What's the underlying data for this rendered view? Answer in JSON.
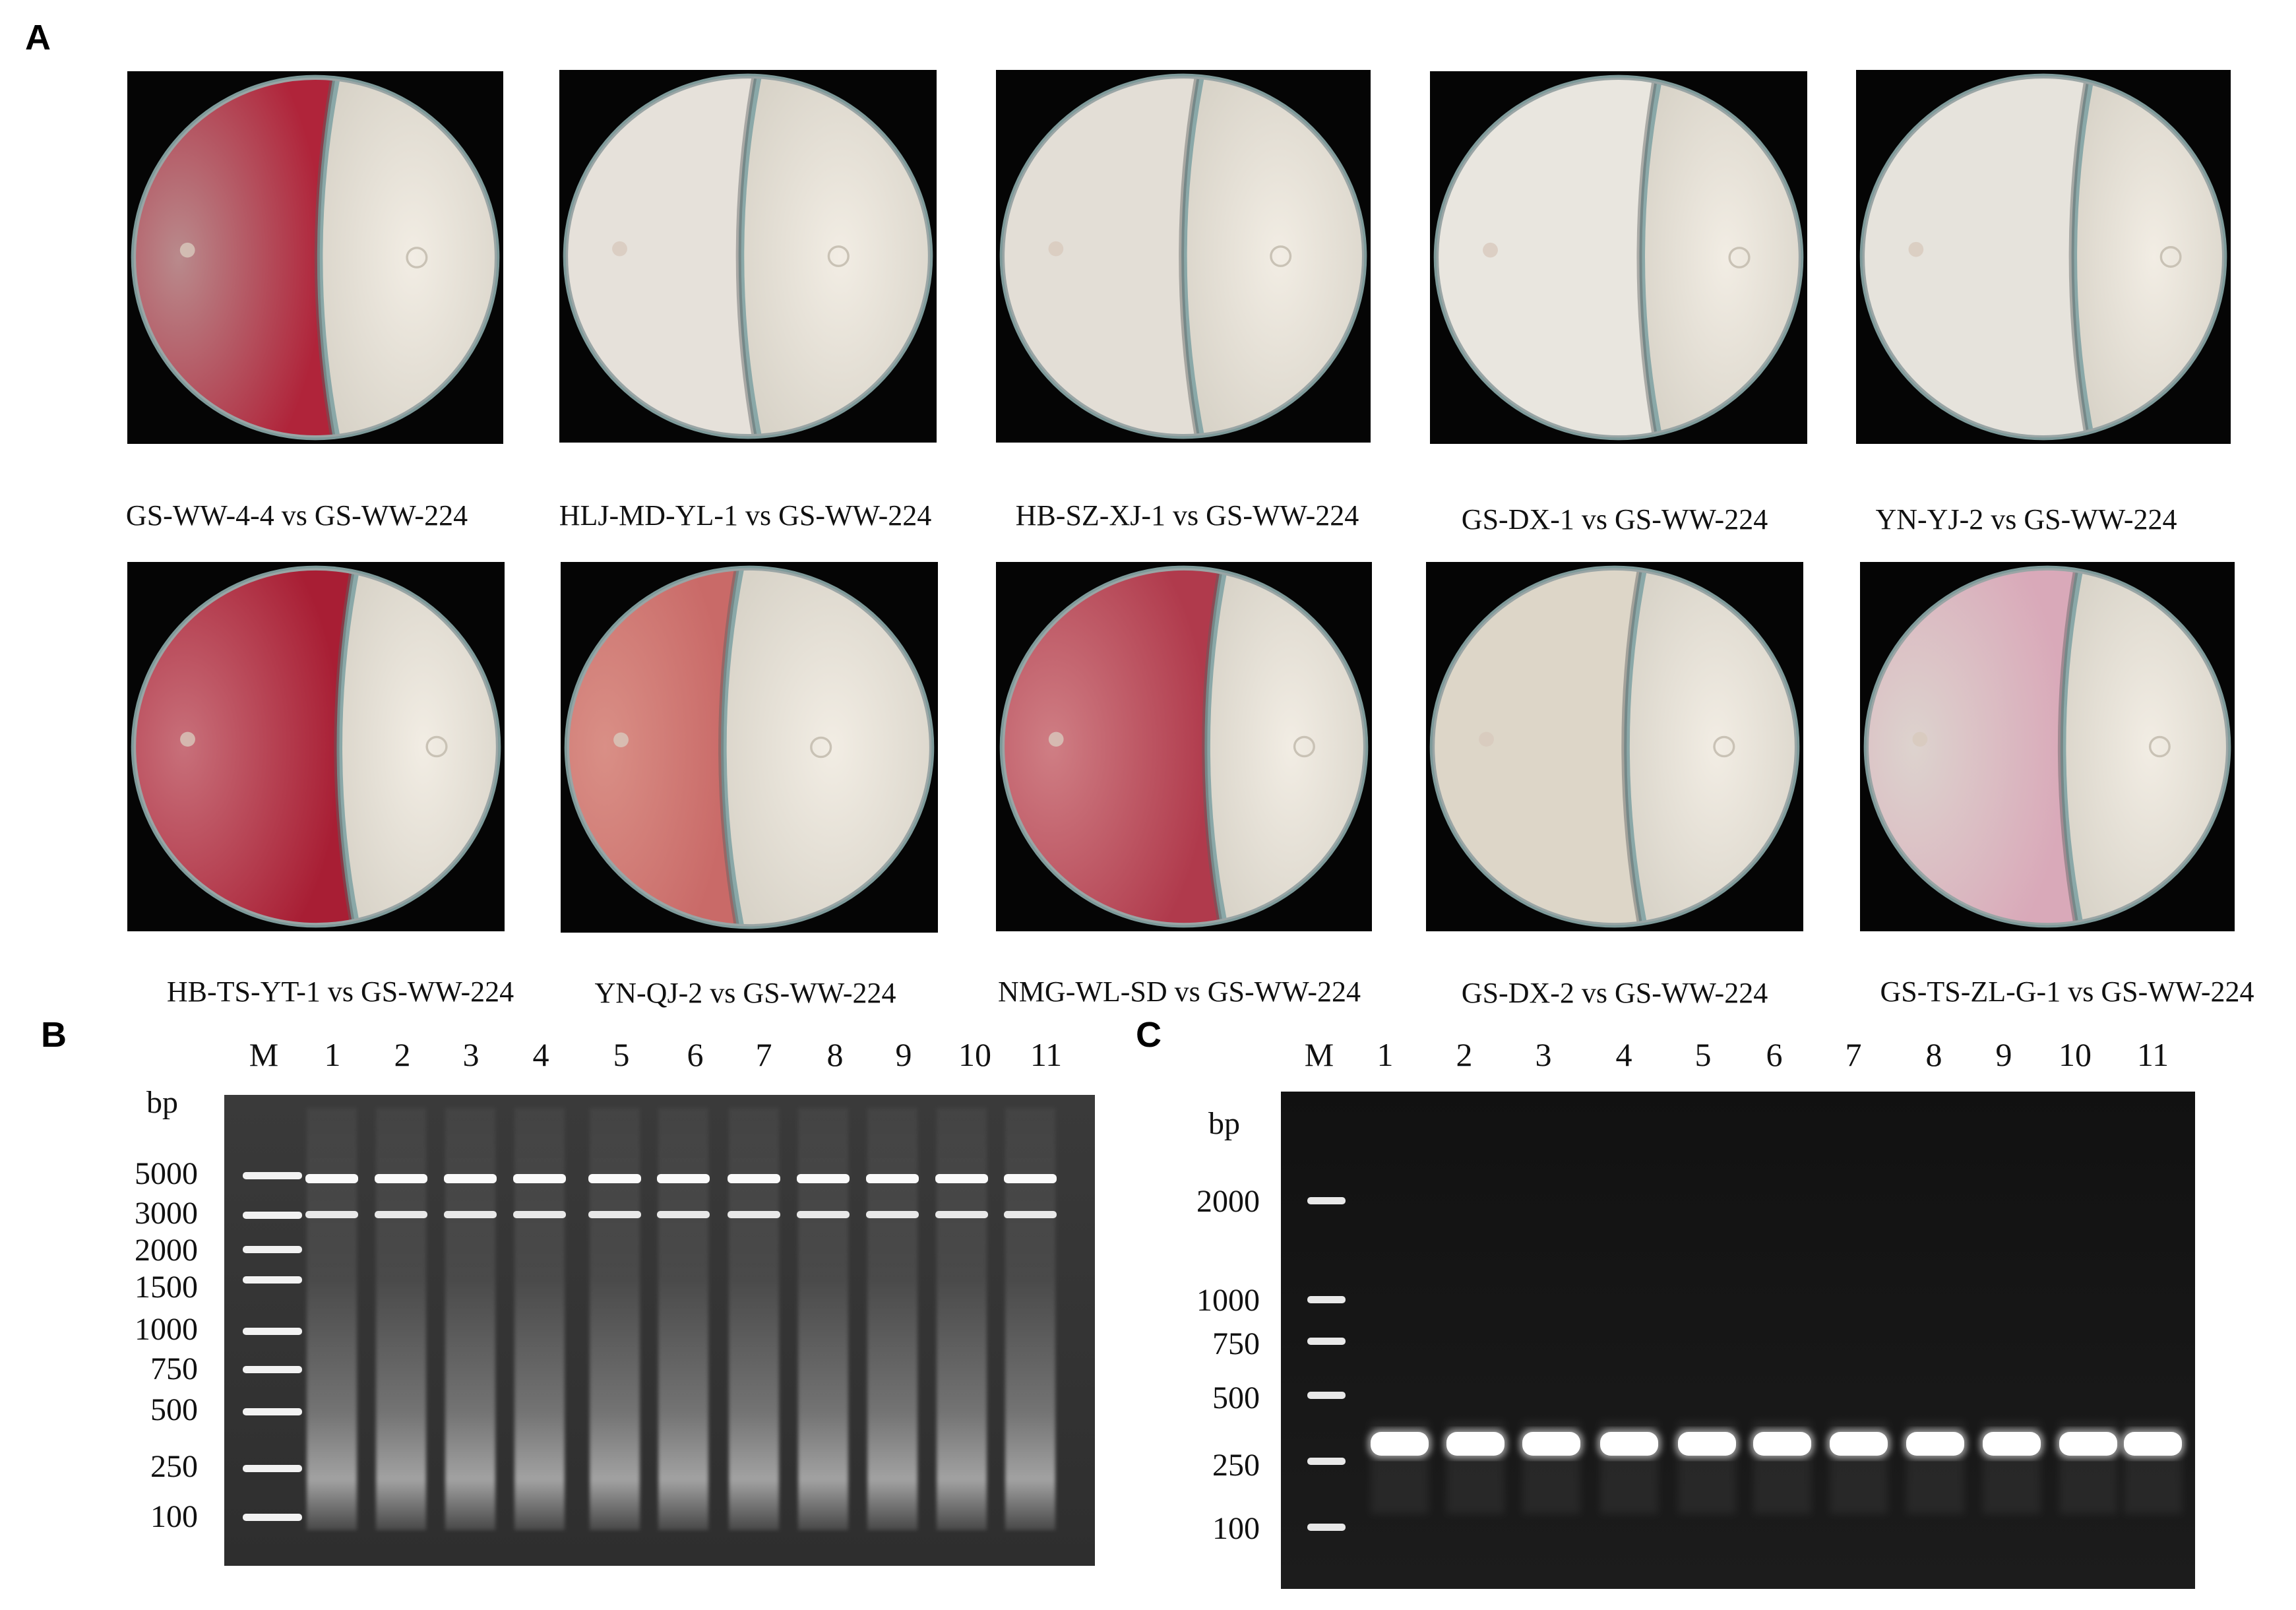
{
  "panel_A": {
    "label": "A",
    "plates": [
      {
        "caption": "GS-WW-4-4 vs GS-WW-224",
        "left_colony_color": "#b98a8c",
        "edge_tint": "#b0243a"
      },
      {
        "caption": "HLJ-MD-YL-1 vs GS-WW-224",
        "left_colony_color": "#e6e1da",
        "edge_tint": "#e6e1da"
      },
      {
        "caption": "HB-SZ-XJ-1 vs GS-WW-224",
        "left_colony_color": "#e3ded6",
        "edge_tint": "#e3ded6"
      },
      {
        "caption": "GS-DX-1 vs GS-WW-224",
        "left_colony_color": "#e9e6df",
        "edge_tint": "#e9e6df"
      },
      {
        "caption": "YN-YJ-2 vs GS-WW-224",
        "left_colony_color": "#e6e3dc",
        "edge_tint": "#e6e3dc"
      },
      {
        "caption": "HB-TS-YT-1 vs GS-WW-224",
        "left_colony_color": "#c8707a",
        "edge_tint": "#a81e34"
      },
      {
        "caption": "YN-QJ-2 vs GS-WW-224",
        "left_colony_color": "#d98f86",
        "edge_tint": "#c96a68"
      },
      {
        "caption": "NMG-WL-SD vs GS-WW-224",
        "left_colony_color": "#cf7e84",
        "edge_tint": "#b03a4c"
      },
      {
        "caption": "GS-DX-2 vs GS-WW-224",
        "left_colony_color": "#ddd6c8",
        "edge_tint": "#ddd6c8"
      },
      {
        "caption": "GS-TS-ZL-G-1 vs GS-WW-224",
        "left_colony_color": "#ddd3ce",
        "edge_tint": "#d9a9b9"
      }
    ]
  },
  "panel_B": {
    "label": "B",
    "lanes": [
      "M",
      "1",
      "2",
      "3",
      "4",
      "5",
      "6",
      "7",
      "8",
      "9",
      "10",
      "11"
    ],
    "unit": "bp",
    "ladder_sizes": [
      "5000",
      "3000",
      "2000",
      "1500",
      "1000",
      "750",
      "500",
      "250",
      "100"
    ],
    "sample_bands_bp": [
      5000,
      3000
    ]
  },
  "panel_C": {
    "label": "C",
    "lanes": [
      "M",
      "1",
      "2",
      "3",
      "4",
      "5",
      "6",
      "7",
      "8",
      "9",
      "10",
      "11"
    ],
    "unit": "bp",
    "ladder_sizes": [
      "2000",
      "1000",
      "750",
      "500",
      "250",
      "100"
    ],
    "sample_bands_bp": [
      300
    ]
  },
  "colors": {
    "gel_background": "#2a2a2a",
    "band": "#ffffff",
    "plate_background": "#050505"
  }
}
